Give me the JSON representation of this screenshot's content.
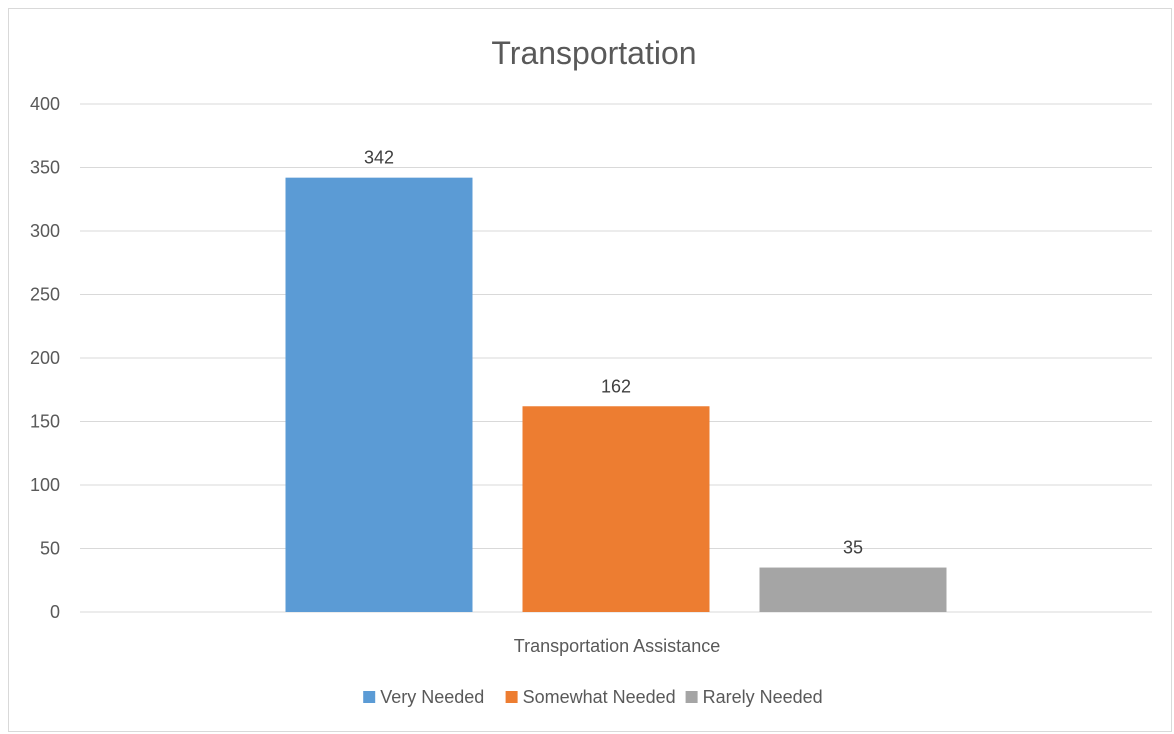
{
  "chart_data": {
    "type": "bar",
    "title": "Transportation",
    "xlabel": "",
    "ylabel": "",
    "categories": [
      "Transportation Assistance"
    ],
    "series": [
      {
        "name": "Very Needed",
        "values": [
          342
        ],
        "color": "#5b9bd5"
      },
      {
        "name": "Somewhat Needed",
        "values": [
          162
        ],
        "color": "#ed7d31"
      },
      {
        "name": "Rarely Needed",
        "values": [
          35
        ],
        "color": "#a5a5a5"
      }
    ],
    "ylim": [
      0,
      400
    ],
    "yticks": [
      0,
      50,
      100,
      150,
      200,
      250,
      300,
      350,
      400
    ],
    "grid": true,
    "legend_position": "bottom",
    "data_labels": true
  }
}
